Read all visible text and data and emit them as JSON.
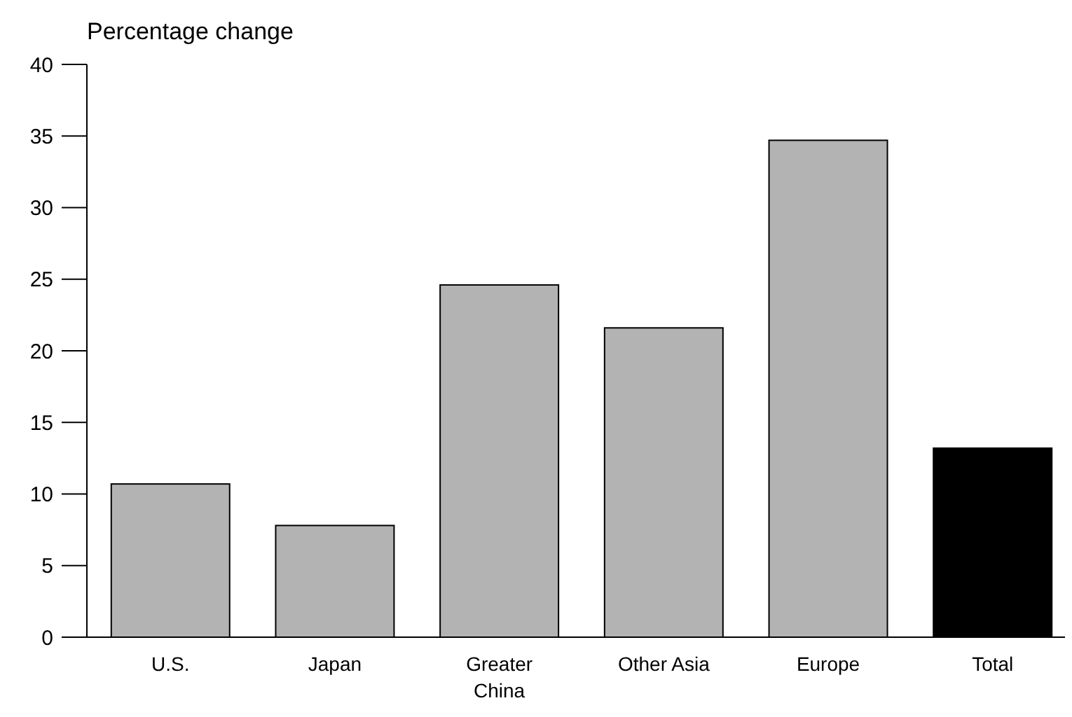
{
  "chart_data": {
    "type": "bar",
    "title": "Percentage change",
    "categories": [
      "U.S.",
      "Japan",
      "Greater China",
      "Other Asia",
      "Europe",
      "Total"
    ],
    "values": [
      10.7,
      7.8,
      24.6,
      21.6,
      34.7,
      13.2
    ],
    "colors": [
      "#b3b3b3",
      "#b3b3b3",
      "#b3b3b3",
      "#b3b3b3",
      "#b3b3b3",
      "#000000"
    ],
    "ylim": [
      0,
      40
    ],
    "yticks": [
      0,
      5,
      10,
      15,
      20,
      25,
      30,
      35,
      40
    ]
  }
}
